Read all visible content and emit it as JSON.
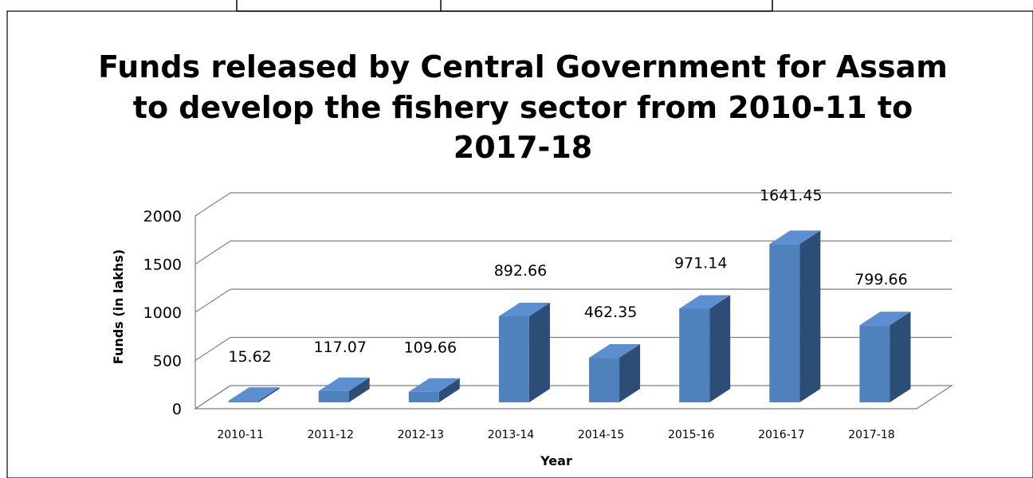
{
  "chart_data": {
    "type": "bar",
    "title_lines": [
      "Funds released by Central Government for  Assam",
      "to develop the fishery sector from 2010-11 to",
      "2017-18"
    ],
    "xlabel": "Year",
    "ylabel": "Funds (in lakhs)",
    "ylim": [
      0,
      2000
    ],
    "yticks": [
      0,
      500,
      1000,
      1500,
      2000
    ],
    "grid": true,
    "legend": "none",
    "categories": [
      "2010-11",
      "2011-12",
      "2012-13",
      "2013-14",
      "2014-15",
      "2015-16",
      "2016-17",
      "2017-18"
    ],
    "values": [
      15.62,
      117.07,
      109.66,
      892.66,
      462.35,
      971.14,
      1641.45,
      799.66
    ],
    "value_labels": [
      "15.62",
      "117.07",
      "109.66",
      "892.66",
      "462.35",
      "971.14",
      "1641.45",
      "799.66"
    ],
    "colors": {
      "bar_front": "#4f81bd",
      "bar_side": "#2c4d75",
      "bar_top": "#5b8fd0",
      "grid": "#7f7f7f"
    }
  }
}
